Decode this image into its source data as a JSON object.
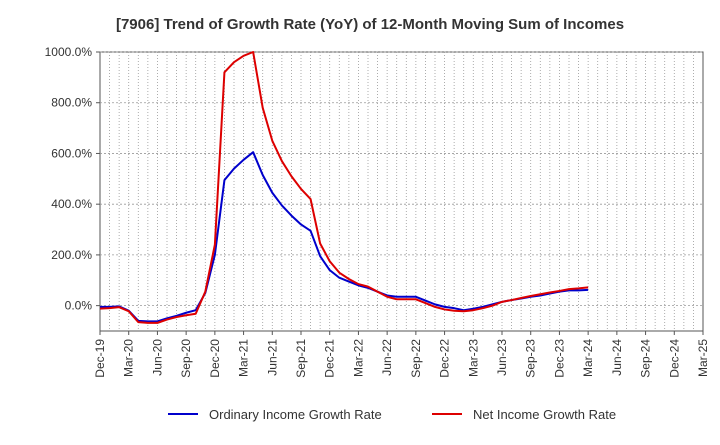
{
  "chart_data": {
    "type": "line",
    "title": "[7906]  Trend of Growth Rate (YoY) of 12-Month Moving Sum of Incomes",
    "xlabel": "",
    "ylabel": "",
    "ylim": [
      -100,
      1000
    ],
    "y_ticks": [
      0,
      200,
      400,
      600,
      800,
      1000
    ],
    "y_tick_labels": [
      "0.0%",
      "200.0%",
      "400.0%",
      "600.0%",
      "800.0%",
      "1000.0%"
    ],
    "x_tick_labels": [
      "Dec-19",
      "Mar-20",
      "Jun-20",
      "Sep-20",
      "Dec-20",
      "Mar-21",
      "Jun-21",
      "Sep-21",
      "Dec-21",
      "Mar-22",
      "Jun-22",
      "Sep-22",
      "Dec-22",
      "Mar-23",
      "Jun-23",
      "Sep-23",
      "Dec-23",
      "Mar-24",
      "Jun-24",
      "Sep-24",
      "Dec-24",
      "Mar-25"
    ],
    "grid": true,
    "legend_position": "bottom",
    "colors": {
      "ordinary": "#0000cc",
      "net": "#dd0000",
      "grid": "#999999",
      "axis": "#555555"
    },
    "series": [
      {
        "name": "Ordinary Income Growth Rate",
        "values": [
          -5,
          -5,
          -3,
          -20,
          -60,
          -62,
          -62,
          -50,
          -40,
          -28,
          -18,
          50,
          200,
          495,
          540,
          575,
          605,
          515,
          445,
          395,
          355,
          320,
          295,
          195,
          140,
          110,
          95,
          80,
          70,
          55,
          40,
          35,
          35,
          35,
          20,
          5,
          -5,
          -10,
          -18,
          -12,
          -5,
          5,
          15,
          22,
          28,
          35,
          40,
          48,
          55,
          60,
          60,
          62
        ]
      },
      {
        "name": "Net Income Growth Rate",
        "values": [
          -12,
          -10,
          -6,
          -22,
          -65,
          -68,
          -68,
          -55,
          -45,
          -38,
          -32,
          55,
          240,
          920,
          960,
          985,
          1000,
          780,
          650,
          570,
          510,
          460,
          420,
          245,
          175,
          130,
          105,
          85,
          75,
          55,
          35,
          25,
          25,
          25,
          10,
          -5,
          -15,
          -20,
          -22,
          -18,
          -10,
          0,
          15,
          22,
          30,
          38,
          45,
          52,
          58,
          65,
          68,
          72
        ]
      }
    ]
  }
}
